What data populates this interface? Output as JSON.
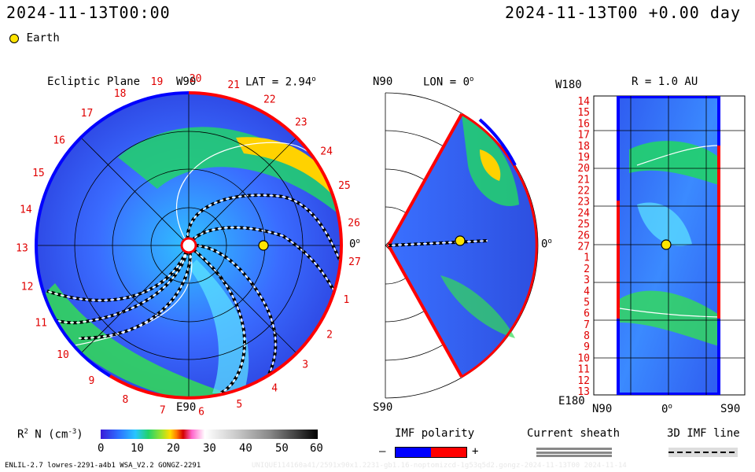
{
  "header": {
    "left_time": "2024-11-13T00:00",
    "right_time": "2024-11-13T00 +0.00 day",
    "earth_label": "Earth"
  },
  "colors": {
    "earth": "#ffe400",
    "imf_negative": "#0000ff",
    "imf_positive": "#ff0000",
    "low_density": "#3355ee",
    "mid_density": "#22cc44",
    "high_density": "#ffcc00"
  },
  "panel_ecliptic": {
    "title": "Ecliptic Plane",
    "top_label": "W90",
    "lat_label": "LAT = 2.94",
    "lat_unit": "o",
    "bottom_label": "E90",
    "right_label": "0",
    "right_unit": "o",
    "rotation_numbers": [
      "19",
      "20",
      "21",
      "22",
      "23",
      "24",
      "25",
      "26",
      "27",
      "1",
      "2",
      "3",
      "4",
      "5",
      "6",
      "7",
      "8",
      "9",
      "10",
      "11",
      "12",
      "13",
      "14",
      "15",
      "16",
      "17",
      "18"
    ]
  },
  "panel_meridional": {
    "top_label": "N90",
    "lon_label": "LON = 0",
    "lon_unit": "o",
    "bottom_label": "S90",
    "right_label": "0",
    "right_unit": "o"
  },
  "panel_r": {
    "top_left_label": "W180",
    "title": "R = 1.0 AU",
    "bottom_left_label": "E180",
    "x_labels": [
      "N90",
      "0",
      "S90"
    ],
    "x_unit": "o",
    "y_labels": [
      "14",
      "15",
      "16",
      "17",
      "18",
      "19",
      "20",
      "21",
      "22",
      "23",
      "24",
      "25",
      "26",
      "27",
      "1",
      "2",
      "3",
      "4",
      "5",
      "6",
      "7",
      "8",
      "9",
      "10",
      "11",
      "12",
      "13"
    ]
  },
  "colorbar": {
    "label": "R",
    "label_sup": "2",
    "label_rest": " N (cm",
    "label_exp": "-3",
    "label_close": ")",
    "ticks": [
      "0",
      "10",
      "20",
      "30",
      "40",
      "50",
      "60"
    ]
  },
  "legend": {
    "imf_title": "IMF polarity",
    "imf_minus": "–",
    "imf_plus": "+",
    "sheath_title": "Current sheath",
    "imf3d_title": "3D IMF line"
  },
  "footer": {
    "model_info": "ENLIL-2.7 lowres-2291-a4b1 WSA_V2.2 GONGZ-2291",
    "run_info": "UNIQUE114160a41/2591x90x1.2231-gb1.16-noptomizcd-1g53q5d2.gongz-2024-11-13T00 2024-11-14"
  }
}
